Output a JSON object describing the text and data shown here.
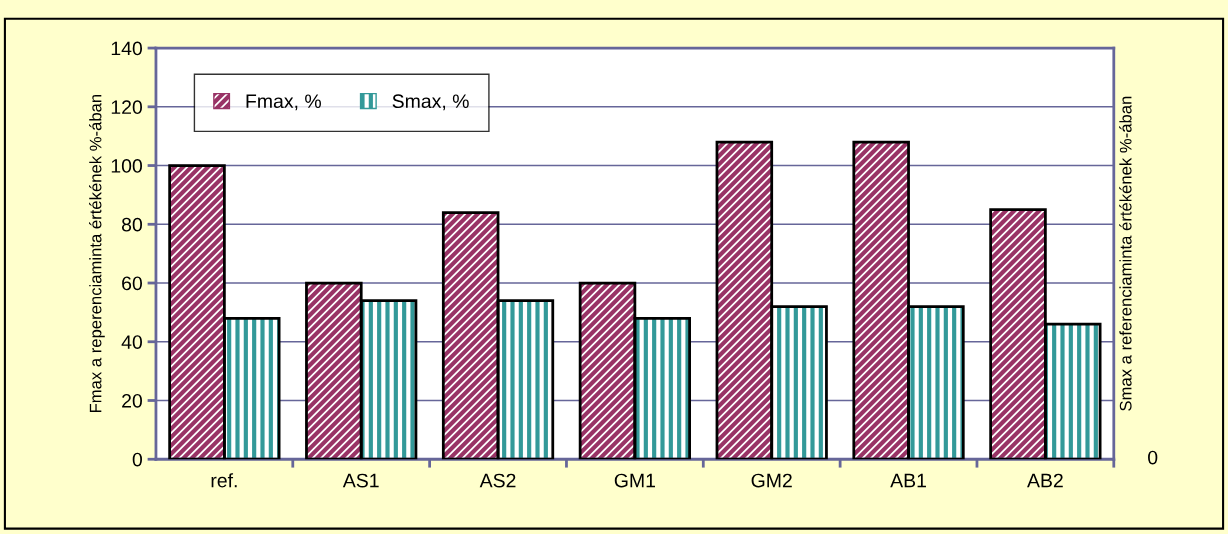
{
  "chart_data": {
    "type": "bar",
    "categories": [
      "ref.",
      "AS1",
      "AS2",
      "GM1",
      "GM2",
      "AB1",
      "AB2"
    ],
    "series": [
      {
        "name": "Fmax, %",
        "color": "#993366",
        "values": [
          100,
          60,
          84,
          60,
          108,
          108,
          85
        ]
      },
      {
        "name": "Smax, %",
        "color": "#339999",
        "values": [
          48,
          54,
          54,
          48,
          52,
          52,
          46
        ]
      }
    ],
    "ylabel": "Fmax a reperenciaminta értékének %-ában",
    "y2label": "Smax a referenciaminta értékének %-ában",
    "ylim": [
      0,
      140
    ],
    "yticks": [
      0,
      20,
      40,
      60,
      80,
      100,
      120,
      140
    ],
    "annotations": [
      "0"
    ],
    "grid": "y",
    "legend": "top left"
  }
}
